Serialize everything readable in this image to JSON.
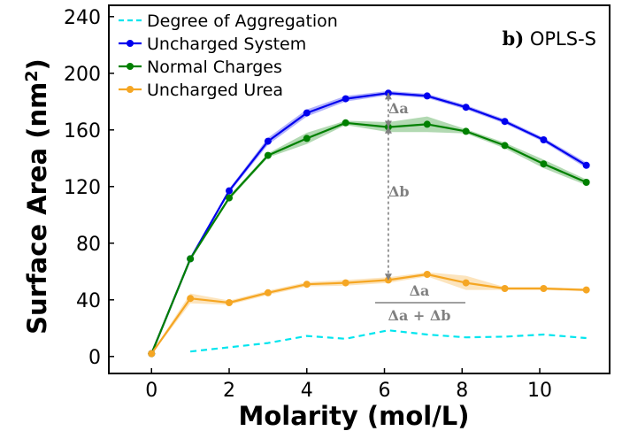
{
  "chart_data": {
    "type": "line",
    "panel_label": {
      "prefix": "b)",
      "text": "OPLS-S"
    },
    "xlabel": "Molarity (mol/L)",
    "ylabel": "Surface Area (nm",
    "ylabel_superscript": "2",
    "ylabel_close": ")",
    "xlim": [
      -1.1,
      11.8
    ],
    "ylim": [
      -12,
      248
    ],
    "xticks": [
      0,
      2,
      4,
      6,
      8,
      10
    ],
    "yticks": [
      0,
      40,
      80,
      120,
      160,
      200,
      240
    ],
    "xtick_labels": [
      "0",
      "2",
      "4",
      "6",
      "8",
      "10"
    ],
    "ytick_labels": [
      "0",
      "40",
      "80",
      "120",
      "160",
      "200",
      "240"
    ],
    "legend_position": "top-left",
    "series": [
      {
        "name": "Degree of Aggregation",
        "color": "#00e5ee",
        "style": "dashed",
        "x": [
          1.0,
          2.0,
          3.0,
          4.0,
          5.0,
          6.1,
          7.1,
          8.1,
          9.1,
          10.1,
          11.2
        ],
        "y": [
          3.5,
          6.5,
          9.5,
          14.5,
          12.5,
          18.5,
          15.5,
          13.5,
          14.0,
          15.5,
          13.0
        ]
      },
      {
        "name": "Uncharged System",
        "color": "#0000ee",
        "style": "solid",
        "x": [
          0,
          1.0,
          2.0,
          3.0,
          4.0,
          5.0,
          6.1,
          7.1,
          8.1,
          9.1,
          10.1,
          11.2
        ],
        "y": [
          2,
          69,
          117,
          152,
          172,
          182,
          186,
          184,
          176,
          166,
          153,
          135
        ],
        "band": [
          0.5,
          1.0,
          1.5,
          2.5,
          2.5,
          2.0,
          1.5,
          1.5,
          1.5,
          1.5,
          1.5,
          2.0
        ]
      },
      {
        "name": "Normal Charges",
        "color": "#008000",
        "style": "solid",
        "x": [
          0,
          1.0,
          2.0,
          3.0,
          4.0,
          5.0,
          6.1,
          7.1,
          8.1,
          9.1,
          10.1,
          11.2
        ],
        "y": [
          2,
          69,
          112,
          142,
          154,
          165,
          162,
          164,
          159,
          149,
          136,
          123
        ],
        "band": [
          0.5,
          1.0,
          1.5,
          1.5,
          4.0,
          1.5,
          3.5,
          5.5,
          1.5,
          2.0,
          3.0,
          2.0
        ]
      },
      {
        "name": "Uncharged Urea",
        "color": "#f5a623",
        "style": "solid",
        "x": [
          0,
          1.0,
          2.0,
          3.0,
          4.0,
          5.0,
          6.1,
          7.1,
          8.1,
          9.1,
          10.1,
          11.2
        ],
        "y": [
          2,
          41,
          38,
          45,
          51,
          52,
          54,
          58,
          52,
          48,
          48,
          47
        ],
        "band": [
          0.5,
          3.5,
          1.5,
          1.5,
          1.5,
          2.0,
          2.0,
          1.5,
          5.0,
          1.0,
          1.0,
          1.0
        ]
      }
    ],
    "annotations": {
      "delta_a": {
        "label": "Δa",
        "x": 6.1,
        "y_top": 186,
        "y_bottom": 162
      },
      "delta_b": {
        "label": "Δb",
        "x": 6.1,
        "y_top": 162,
        "y_bottom": 54
      },
      "ratio": {
        "numerator": "Δa",
        "denominator": "Δa + Δb"
      }
    }
  }
}
